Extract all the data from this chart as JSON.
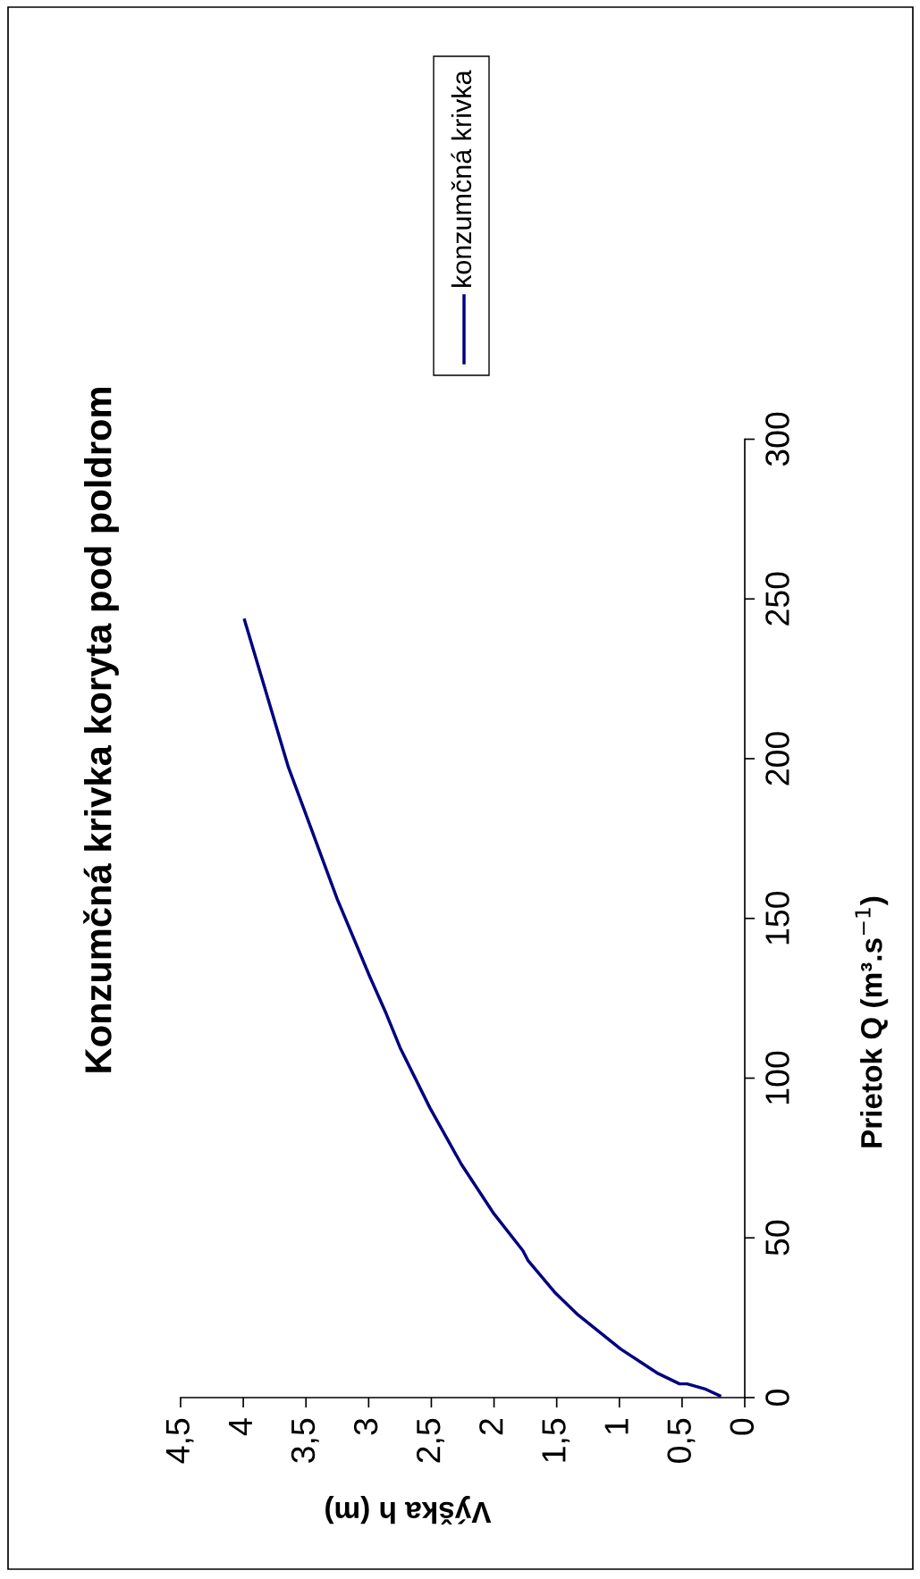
{
  "chart_data": {
    "type": "line",
    "title": "Konzumčná krivka koryta pod poldrom",
    "xlabel": "Výška h (m)",
    "ylabel": "Prietok Q (m³.s$^{−1}$)",
    "x": [
      0.2,
      0.31,
      0.46,
      0.52,
      0.69,
      0.99,
      1.33,
      1.51,
      1.73,
      1.77,
      2.0,
      2.26,
      2.51,
      2.75,
      2.86,
      2.99,
      3.25,
      3.53,
      3.64,
      3.99
    ],
    "series": [
      {
        "name": "konzumčná krivka",
        "color": "#000080",
        "values": [
          0.6,
          2.6,
          4.3,
          4.3,
          7.5,
          15.2,
          25.9,
          32.7,
          43,
          46,
          57.5,
          73,
          90.6,
          109.6,
          120.2,
          131.7,
          156,
          185.7,
          197.3,
          243.4
        ]
      }
    ],
    "xlim": [
      4.5,
      0
    ],
    "xticks": [
      0,
      {
        "value": 0.5,
        "label": "0,5"
      },
      1,
      {
        "value": 1.5,
        "label": "1,5"
      },
      2,
      {
        "value": 2.5,
        "label": "2,5"
      },
      3,
      {
        "value": 3.5,
        "label": "3,5"
      },
      4,
      {
        "value": 4.5,
        "label": "4,5"
      }
    ],
    "ylim": [
      0,
      300
    ],
    "yticks": [
      0,
      50,
      100,
      150,
      200,
      250,
      300
    ],
    "grid": false,
    "legend": "top right",
    "marker": "none",
    "line_style": "solid"
  }
}
